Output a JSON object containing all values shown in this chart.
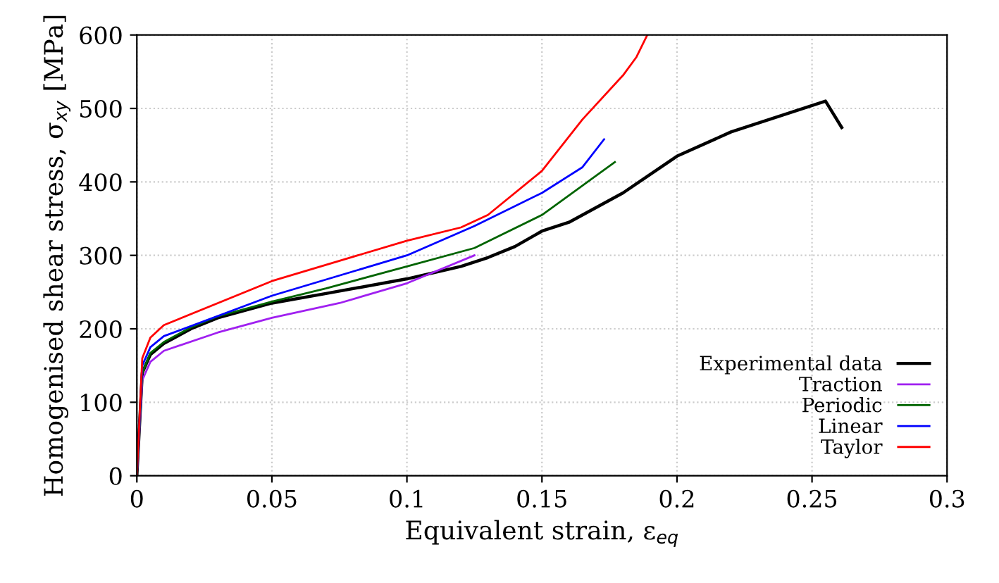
{
  "chart_data": {
    "type": "line",
    "xlabel": "Equivalent strain, ε$_{eq}$",
    "ylabel": "Homogenised shear stress, σ$_{xy}$ [MPa]",
    "xlim": [
      0,
      0.3
    ],
    "ylim": [
      0,
      600
    ],
    "xticks": [
      0,
      0.05,
      0.1,
      0.15,
      0.2,
      0.25,
      0.3
    ],
    "yticks": [
      0,
      100,
      200,
      300,
      400,
      500,
      600
    ],
    "grid": true,
    "legend": "bottom right",
    "line_style": "solid",
    "marker": "none",
    "series": [
      {
        "name": "Experimental data",
        "color": "#000000",
        "x": [
          0,
          0.002,
          0.005,
          0.01,
          0.02,
          0.03,
          0.05,
          0.07,
          0.1,
          0.12,
          0.13,
          0.14,
          0.15,
          0.16,
          0.18,
          0.2,
          0.22,
          0.24,
          0.255,
          0.261
        ],
        "values": [
          0,
          140,
          165,
          180,
          200,
          215,
          235,
          248,
          268,
          285,
          297,
          312,
          333,
          345,
          385,
          435,
          468,
          492,
          510,
          474
        ]
      },
      {
        "name": "Traction",
        "color": "#a020f0",
        "x": [
          0,
          0.002,
          0.005,
          0.01,
          0.03,
          0.05,
          0.075,
          0.1,
          0.125
        ],
        "values": [
          0,
          130,
          155,
          170,
          195,
          215,
          235,
          262,
          300
        ]
      },
      {
        "name": "Periodic",
        "color": "#006400",
        "x": [
          0,
          0.002,
          0.005,
          0.01,
          0.02,
          0.03,
          0.05,
          0.07,
          0.1,
          0.125,
          0.15,
          0.165,
          0.177
        ],
        "values": [
          0,
          140,
          167,
          182,
          202,
          217,
          237,
          255,
          285,
          310,
          355,
          395,
          427
        ]
      },
      {
        "name": "Linear",
        "color": "#0000ff",
        "x": [
          0,
          0.002,
          0.005,
          0.01,
          0.05,
          0.1,
          0.125,
          0.15,
          0.165,
          0.173
        ],
        "values": [
          0,
          150,
          175,
          190,
          245,
          300,
          340,
          385,
          420,
          458
        ]
      },
      {
        "name": "Taylor",
        "color": "#ff0000",
        "x": [
          0,
          0.002,
          0.005,
          0.01,
          0.05,
          0.1,
          0.12,
          0.13,
          0.15,
          0.165,
          0.18,
          0.185,
          0.189
        ],
        "values": [
          0,
          160,
          188,
          205,
          265,
          320,
          338,
          355,
          415,
          485,
          545,
          570,
          600
        ]
      }
    ]
  }
}
